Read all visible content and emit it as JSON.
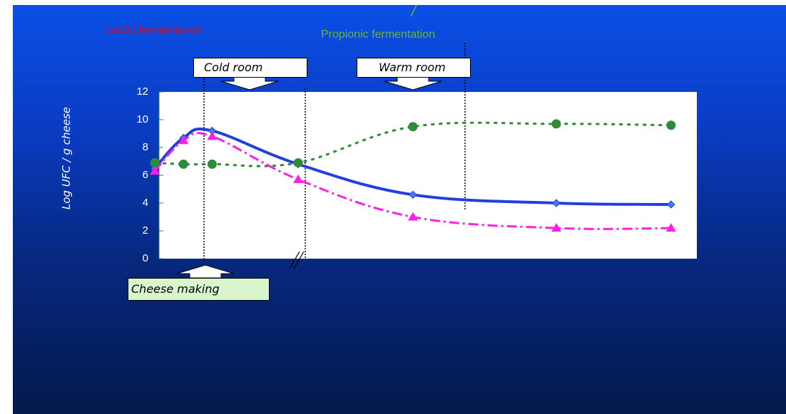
{
  "chart_data": {
    "type": "line",
    "ylabel": "Log UFC / g  cheese",
    "yticks": [
      "0",
      "2",
      "4",
      "6",
      "8",
      "10",
      "12"
    ],
    "ylim": [
      0,
      12
    ],
    "x": [
      0,
      1,
      2,
      5,
      9,
      14,
      18
    ],
    "xlim": [
      -0.1,
      18.9
    ],
    "grid": false,
    "series": [
      {
        "color": "#1f3fe0",
        "marker": "diamond",
        "style": "solid",
        "values": [
          6.5,
          8.7,
          9.2,
          6.8,
          4.6,
          4.0,
          3.9
        ]
      },
      {
        "color": "#ff1fe0",
        "marker": "triangle",
        "style": "dashdot",
        "values": [
          6.3,
          8.5,
          8.8,
          5.7,
          3.0,
          2.2,
          2.2
        ]
      },
      {
        "color": "#2e8b3a",
        "marker": "circle",
        "style": "dotted",
        "values": [
          6.9,
          6.8,
          6.8,
          6.9,
          9.5,
          9.7,
          9.6
        ]
      }
    ],
    "annotations": {
      "lactic": "Lactic fermentation",
      "propionic": "Propionic fermentation",
      "cold_room": "Cold room",
      "warm_room": "Warm room",
      "cheese_making": "Cheese making"
    },
    "colors": {
      "lactic": "#d0102a",
      "propionic": "#6fae44"
    }
  }
}
